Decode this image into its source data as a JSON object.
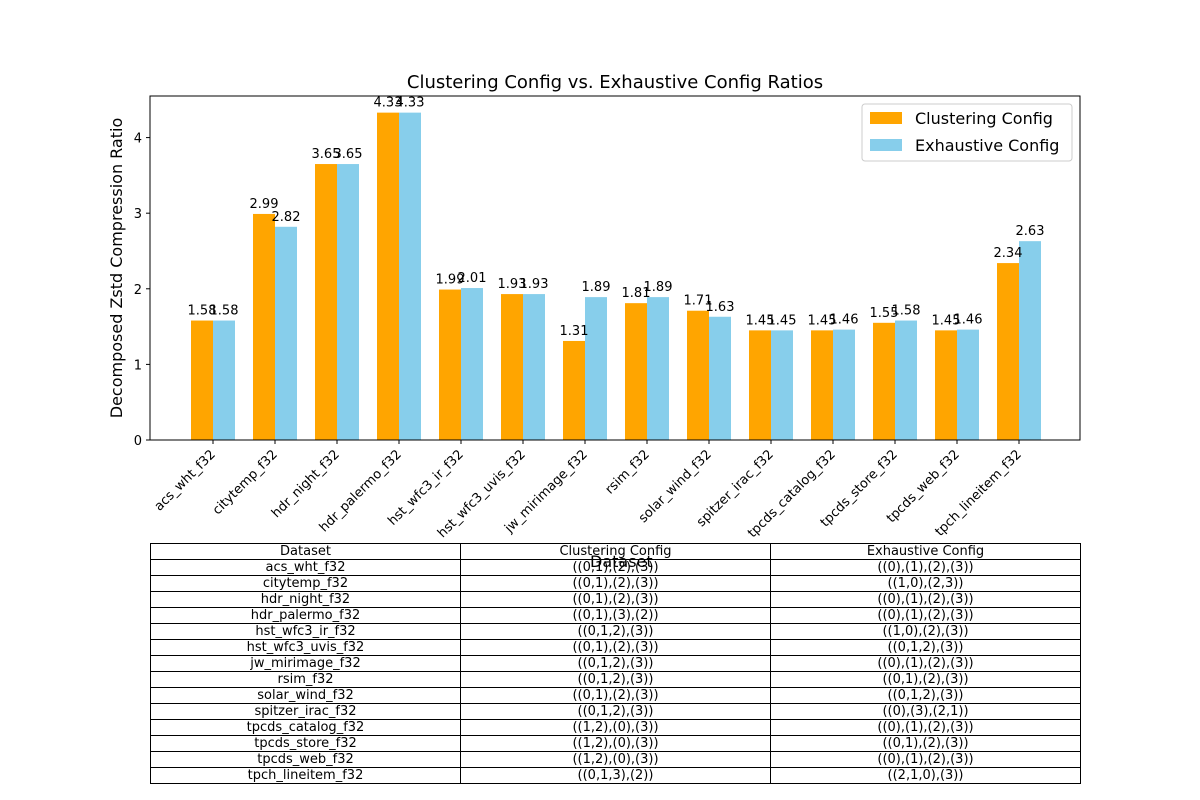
{
  "chart_data": {
    "type": "bar",
    "title": "Clustering Config vs. Exhaustive Config Ratios",
    "xlabel": "Dataset",
    "ylabel": "Decomposed Zstd Compression Ratio",
    "ylim": [
      0,
      4.55
    ],
    "yticks": [
      0,
      1,
      2,
      3,
      4
    ],
    "grid": false,
    "legend_position": "top-right",
    "categories": [
      "acs_wht_f32",
      "citytemp_f32",
      "hdr_night_f32",
      "hdr_palermo_f32",
      "hst_wfc3_ir_f32",
      "hst_wfc3_uvis_f32",
      "jw_mirimage_f32",
      "rsim_f32",
      "solar_wind_f32",
      "spitzer_irac_f32",
      "tpcds_catalog_f32",
      "tpcds_store_f32",
      "tpcds_web_f32",
      "tpch_lineitem_f32"
    ],
    "series": [
      {
        "name": "Clustering Config",
        "color": "#ffa500",
        "values": [
          1.58,
          2.99,
          3.65,
          4.33,
          1.99,
          1.93,
          1.31,
          1.81,
          1.71,
          1.45,
          1.45,
          1.55,
          1.45,
          2.34
        ],
        "labels": [
          "1.58",
          "2.99",
          "3.65",
          "4.33",
          "1.99",
          "1.93",
          "1.31",
          "1.81",
          "1.71",
          "1.45",
          "1.45",
          "1.55",
          "1.45",
          "2.34"
        ]
      },
      {
        "name": "Exhaustive Config",
        "color": "#87ceeb",
        "values": [
          1.58,
          2.82,
          3.65,
          4.33,
          2.01,
          1.93,
          1.89,
          1.89,
          1.63,
          1.45,
          1.46,
          1.58,
          1.46,
          2.63
        ],
        "labels": [
          "1.58",
          "2.82",
          "3.65",
          "4.33",
          "2.01",
          "1.93",
          "1.89",
          "1.89",
          "1.63",
          "1.45",
          "1.46",
          "1.58",
          "1.46",
          "2.63"
        ]
      }
    ],
    "table": {
      "headers": [
        "Dataset",
        "Clustering Config",
        "Exhaustive Config"
      ],
      "rows": [
        [
          "acs_wht_f32",
          "((0,1),(2),(3))",
          "((0),(1),(2),(3))"
        ],
        [
          "citytemp_f32",
          "((0,1),(2),(3))",
          "((1,0),(2,3))"
        ],
        [
          "hdr_night_f32",
          "((0,1),(2),(3))",
          "((0),(1),(2),(3))"
        ],
        [
          "hdr_palermo_f32",
          "((0,1),(3),(2))",
          "((0),(1),(2),(3))"
        ],
        [
          "hst_wfc3_ir_f32",
          "((0,1,2),(3))",
          "((1,0),(2),(3))"
        ],
        [
          "hst_wfc3_uvis_f32",
          "((0,1),(2),(3))",
          "((0,1,2),(3))"
        ],
        [
          "jw_mirimage_f32",
          "((0,1,2),(3))",
          "((0),(1),(2),(3))"
        ],
        [
          "rsim_f32",
          "((0,1,2),(3))",
          "((0,1),(2),(3))"
        ],
        [
          "solar_wind_f32",
          "((0,1),(2),(3))",
          "((0,1,2),(3))"
        ],
        [
          "spitzer_irac_f32",
          "((0,1,2),(3))",
          "((0),(3),(2,1))"
        ],
        [
          "tpcds_catalog_f32",
          "((1,2),(0),(3))",
          "((0),(1),(2),(3))"
        ],
        [
          "tpcds_store_f32",
          "((1,2),(0),(3))",
          "((0,1),(2),(3))"
        ],
        [
          "tpcds_web_f32",
          "((1,2),(0),(3))",
          "((0),(1),(2),(3))"
        ],
        [
          "tpch_lineitem_f32",
          "((0,1,3),(2))",
          "((2,1,0),(3))"
        ]
      ]
    }
  }
}
